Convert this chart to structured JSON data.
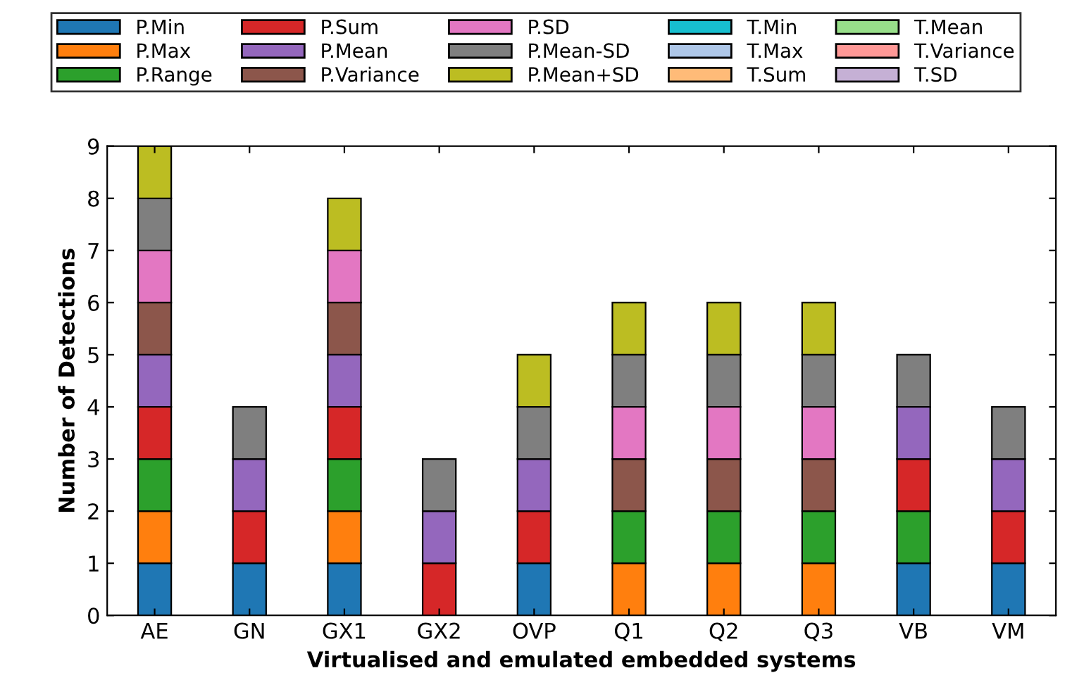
{
  "chart_data": {
    "type": "bar",
    "stacked": true,
    "xlabel": "Virtualised and emulated embedded systems",
    "ylabel": "Number of Detections",
    "categories": [
      "AE",
      "GN",
      "GX1",
      "GX2",
      "OVP",
      "Q1",
      "Q2",
      "Q3",
      "VB",
      "VM"
    ],
    "ylim": [
      0,
      9
    ],
    "yticks": [
      0,
      1,
      2,
      3,
      4,
      5,
      6,
      7,
      8,
      9
    ],
    "grid": false,
    "legend": "top",
    "series": [
      {
        "name": "P.Min",
        "color": "#1f77b4",
        "values": [
          1,
          1,
          1,
          0,
          1,
          0,
          0,
          0,
          1,
          1
        ]
      },
      {
        "name": "P.Max",
        "color": "#ff7f0e",
        "values": [
          1,
          0,
          1,
          0,
          0,
          1,
          1,
          1,
          0,
          0
        ]
      },
      {
        "name": "P.Range",
        "color": "#2ca02c",
        "values": [
          1,
          0,
          1,
          0,
          0,
          1,
          1,
          1,
          1,
          0
        ]
      },
      {
        "name": "P.Sum",
        "color": "#d62728",
        "values": [
          1,
          1,
          1,
          1,
          1,
          0,
          0,
          0,
          1,
          1
        ]
      },
      {
        "name": "P.Mean",
        "color": "#9467bd",
        "values": [
          1,
          1,
          1,
          1,
          1,
          0,
          0,
          0,
          1,
          1
        ]
      },
      {
        "name": "P.Variance",
        "color": "#8c564b",
        "values": [
          1,
          0,
          1,
          0,
          0,
          1,
          1,
          1,
          0,
          0
        ]
      },
      {
        "name": "P.SD",
        "color": "#e377c2",
        "values": [
          1,
          0,
          1,
          0,
          0,
          1,
          1,
          1,
          0,
          0
        ]
      },
      {
        "name": "P.Mean-SD",
        "color": "#7f7f7f",
        "values": [
          1,
          1,
          0,
          1,
          1,
          1,
          1,
          1,
          1,
          1
        ]
      },
      {
        "name": "P.Mean+SD",
        "color": "#bcbd22",
        "values": [
          1,
          0,
          1,
          0,
          1,
          1,
          1,
          1,
          0,
          0
        ]
      },
      {
        "name": "T.Min",
        "color": "#17becf",
        "values": [
          0,
          0,
          0,
          0,
          0,
          0,
          0,
          0,
          0,
          0
        ]
      },
      {
        "name": "T.Max",
        "color": "#aec7e8",
        "values": [
          0,
          0,
          0,
          0,
          0,
          0,
          0,
          0,
          0,
          0
        ]
      },
      {
        "name": "T.Sum",
        "color": "#ffbb78",
        "values": [
          0,
          0,
          0,
          0,
          0,
          0,
          0,
          0,
          0,
          0
        ]
      },
      {
        "name": "T.Mean",
        "color": "#98df8a",
        "values": [
          0,
          0,
          0,
          0,
          0,
          0,
          0,
          0,
          0,
          0
        ]
      },
      {
        "name": "T.Variance",
        "color": "#ff9896",
        "values": [
          0,
          0,
          0,
          0,
          0,
          0,
          0,
          0,
          0,
          0
        ]
      },
      {
        "name": "T.SD",
        "color": "#c5b0d5",
        "values": [
          0,
          0,
          0,
          0,
          0,
          0,
          0,
          0,
          0,
          0
        ]
      }
    ]
  }
}
